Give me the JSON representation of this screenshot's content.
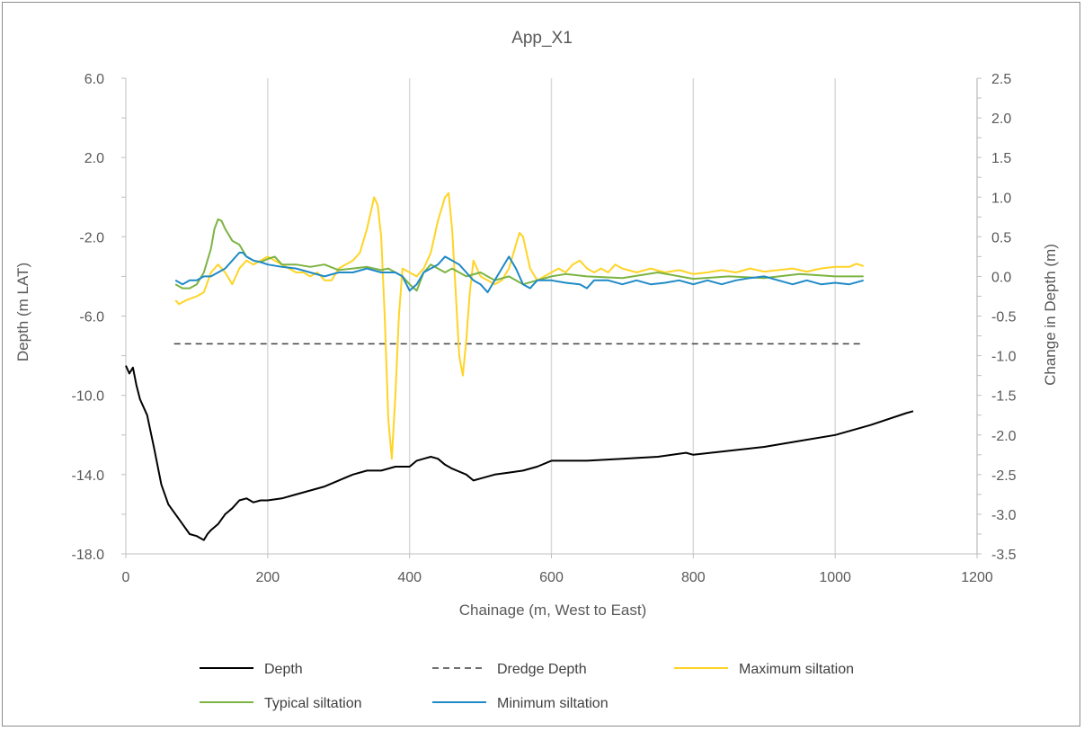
{
  "chart_data": {
    "type": "line",
    "title": "App_X1",
    "xlabel": "Chainage (m, West to East)",
    "ylabel": "Depth (m LAT)",
    "y2label": "Change in Depth (m)",
    "xlim": [
      0,
      1200
    ],
    "ylim": [
      -18,
      6
    ],
    "y2lim": [
      -3.5,
      2.5
    ],
    "xticks": [
      "0",
      "200",
      "400",
      "600",
      "800",
      "1000",
      "1200"
    ],
    "yticks": [
      "6.0",
      "2.0",
      "-2.0",
      "-6.0",
      "-10.0",
      "-14.0",
      "-18.0"
    ],
    "y2ticks": [
      "2.5",
      "2.0",
      "1.5",
      "1.0",
      "0.5",
      "0.0",
      "-0.5",
      "-1.0",
      "-1.5",
      "-2.0",
      "-2.5",
      "-3.0",
      "-3.5"
    ],
    "grid": "vertical",
    "legend_position": "bottom",
    "series": [
      {
        "name": "Depth",
        "axis": "left",
        "color": "#000000",
        "dash": "solid",
        "x": [
          0,
          5,
          10,
          15,
          20,
          30,
          40,
          50,
          60,
          70,
          80,
          90,
          100,
          110,
          115,
          120,
          130,
          140,
          150,
          160,
          170,
          180,
          190,
          200,
          220,
          240,
          260,
          280,
          300,
          320,
          340,
          360,
          380,
          400,
          410,
          420,
          430,
          440,
          450,
          460,
          480,
          490,
          500,
          520,
          540,
          560,
          580,
          600,
          650,
          700,
          750,
          790,
          800,
          850,
          900,
          950,
          1000,
          1050,
          1100,
          1110
        ],
        "y": [
          -8.5,
          -8.9,
          -8.6,
          -9.5,
          -10.2,
          -11.0,
          -12.7,
          -14.5,
          -15.5,
          -16.0,
          -16.5,
          -17.0,
          -17.1,
          -17.3,
          -17.0,
          -16.8,
          -16.5,
          -16.0,
          -15.7,
          -15.3,
          -15.2,
          -15.4,
          -15.3,
          -15.3,
          -15.2,
          -15.0,
          -14.8,
          -14.6,
          -14.3,
          -14.0,
          -13.8,
          -13.8,
          -13.6,
          -13.6,
          -13.3,
          -13.2,
          -13.1,
          -13.2,
          -13.5,
          -13.7,
          -14.0,
          -14.3,
          -14.2,
          -14.0,
          -13.9,
          -13.8,
          -13.6,
          -13.3,
          -13.3,
          -13.2,
          -13.1,
          -12.9,
          -13.0,
          -12.8,
          -12.6,
          -12.3,
          -12.0,
          -11.5,
          -10.9,
          -10.8
        ]
      },
      {
        "name": "Dredge Depth",
        "axis": "left",
        "color": "#404040",
        "dash": "dashed",
        "x": [
          68,
          1040
        ],
        "y": [
          -7.4,
          -7.4
        ]
      },
      {
        "name": "Maximum siltation",
        "axis": "right",
        "color": "#ffd426",
        "dash": "solid",
        "x": [
          70,
          75,
          85,
          100,
          110,
          120,
          130,
          140,
          150,
          160,
          170,
          180,
          190,
          200,
          210,
          220,
          230,
          240,
          250,
          260,
          270,
          280,
          290,
          300,
          310,
          320,
          330,
          340,
          345,
          350,
          355,
          360,
          365,
          370,
          375,
          380,
          385,
          390,
          400,
          410,
          420,
          430,
          440,
          450,
          455,
          460,
          465,
          470,
          475,
          480,
          485,
          490,
          500,
          510,
          520,
          530,
          540,
          550,
          555,
          560,
          570,
          580,
          590,
          600,
          610,
          620,
          630,
          640,
          650,
          660,
          670,
          680,
          690,
          700,
          720,
          740,
          760,
          780,
          800,
          820,
          840,
          860,
          880,
          900,
          920,
          940,
          960,
          980,
          1000,
          1020,
          1030,
          1040
        ],
        "y": [
          -0.3,
          -0.35,
          -0.3,
          -0.25,
          -0.2,
          0.05,
          0.15,
          0.05,
          -0.1,
          0.1,
          0.2,
          0.15,
          0.2,
          0.25,
          0.2,
          0.15,
          0.1,
          0.05,
          0.05,
          0.0,
          0.05,
          -0.05,
          -0.05,
          0.1,
          0.15,
          0.2,
          0.3,
          0.6,
          0.8,
          1.0,
          0.9,
          0.5,
          -0.5,
          -1.8,
          -2.3,
          -1.5,
          -0.5,
          0.1,
          0.05,
          0.0,
          0.1,
          0.3,
          0.7,
          1.0,
          1.05,
          0.6,
          -0.2,
          -1.0,
          -1.25,
          -0.8,
          -0.2,
          0.2,
          0.0,
          -0.05,
          -0.1,
          -0.05,
          0.1,
          0.4,
          0.55,
          0.5,
          0.1,
          -0.05,
          0.0,
          0.05,
          0.1,
          0.05,
          0.15,
          0.2,
          0.1,
          0.05,
          0.1,
          0.05,
          0.15,
          0.1,
          0.05,
          0.1,
          0.05,
          0.08,
          0.03,
          0.05,
          0.08,
          0.05,
          0.1,
          0.06,
          0.08,
          0.1,
          0.06,
          0.1,
          0.12,
          0.12,
          0.16,
          0.13
        ]
      },
      {
        "name": "Typical siltation",
        "axis": "right",
        "color": "#7cb342",
        "dash": "solid",
        "x": [
          70,
          80,
          90,
          100,
          110,
          120,
          125,
          130,
          135,
          140,
          150,
          160,
          170,
          180,
          190,
          200,
          210,
          220,
          240,
          260,
          280,
          300,
          320,
          340,
          360,
          370,
          380,
          390,
          400,
          410,
          420,
          430,
          440,
          450,
          460,
          480,
          500,
          520,
          540,
          560,
          580,
          600,
          620,
          650,
          700,
          750,
          800,
          850,
          900,
          950,
          1000,
          1040
        ],
        "y": [
          -0.1,
          -0.15,
          -0.15,
          -0.1,
          0.05,
          0.35,
          0.6,
          0.72,
          0.7,
          0.6,
          0.45,
          0.4,
          0.25,
          0.2,
          0.18,
          0.22,
          0.25,
          0.15,
          0.15,
          0.12,
          0.15,
          0.08,
          0.1,
          0.12,
          0.08,
          0.1,
          0.05,
          0.0,
          -0.1,
          -0.18,
          0.05,
          0.15,
          0.1,
          0.05,
          0.1,
          0.0,
          0.05,
          -0.05,
          0.0,
          -0.1,
          -0.05,
          0.0,
          0.03,
          0.0,
          -0.02,
          0.05,
          -0.03,
          0.0,
          -0.02,
          0.03,
          0.0,
          0.0
        ]
      },
      {
        "name": "Minimum siltation",
        "axis": "right",
        "color": "#1f8ac6",
        "dash": "solid",
        "x": [
          70,
          80,
          90,
          100,
          110,
          120,
          130,
          140,
          150,
          160,
          165,
          170,
          180,
          190,
          200,
          220,
          240,
          260,
          280,
          300,
          320,
          340,
          360,
          380,
          390,
          400,
          410,
          420,
          430,
          440,
          450,
          460,
          470,
          480,
          490,
          500,
          510,
          520,
          530,
          540,
          550,
          560,
          570,
          580,
          600,
          620,
          640,
          650,
          660,
          680,
          700,
          720,
          740,
          760,
          780,
          800,
          820,
          840,
          860,
          880,
          900,
          920,
          940,
          960,
          980,
          1000,
          1020,
          1040
        ],
        "y": [
          -0.05,
          -0.1,
          -0.05,
          -0.05,
          0.0,
          0.0,
          0.05,
          0.1,
          0.2,
          0.3,
          0.3,
          0.25,
          0.2,
          0.18,
          0.15,
          0.12,
          0.1,
          0.05,
          0.0,
          0.05,
          0.05,
          0.1,
          0.05,
          0.05,
          0.0,
          -0.18,
          -0.1,
          0.05,
          0.1,
          0.15,
          0.25,
          0.2,
          0.15,
          0.05,
          -0.05,
          -0.1,
          -0.2,
          -0.05,
          0.1,
          0.25,
          0.1,
          -0.1,
          -0.15,
          -0.05,
          -0.05,
          -0.08,
          -0.1,
          -0.15,
          -0.05,
          -0.05,
          -0.1,
          -0.05,
          -0.1,
          -0.08,
          -0.05,
          -0.1,
          -0.05,
          -0.1,
          -0.05,
          -0.02,
          0.0,
          -0.05,
          -0.1,
          -0.05,
          -0.1,
          -0.08,
          -0.1,
          -0.05
        ]
      }
    ]
  }
}
